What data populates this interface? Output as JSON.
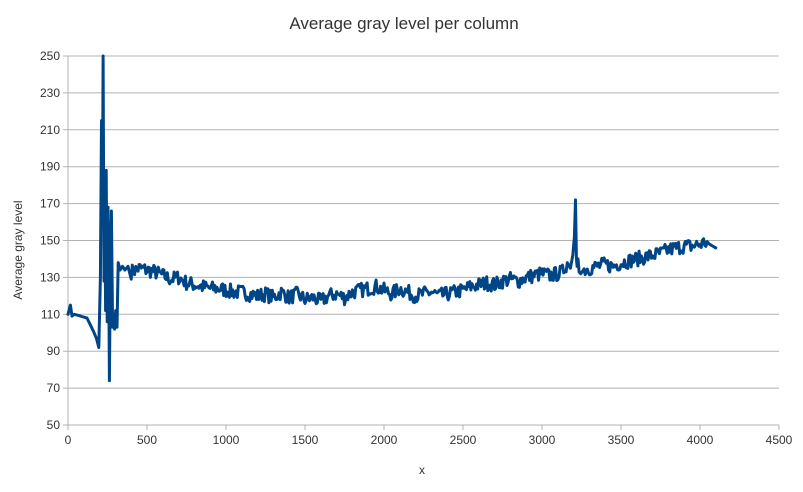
{
  "chart_data": {
    "type": "line",
    "title": "Average gray level per column",
    "xlabel": "x",
    "ylabel": "Average gray level",
    "xlim": [
      0,
      4500
    ],
    "ylim": [
      50,
      250
    ],
    "x_ticks": [
      0,
      500,
      1000,
      1500,
      2000,
      2500,
      3000,
      3500,
      4000,
      4500
    ],
    "y_ticks": [
      50,
      70,
      90,
      110,
      130,
      150,
      170,
      190,
      210,
      230,
      250
    ],
    "grid": true,
    "legend": "none",
    "series": [
      {
        "color": "#004586",
        "x": [
          0,
          15,
          25,
          40,
          80,
          120,
          160,
          180,
          195,
          205,
          212,
          218,
          222,
          228,
          232,
          238,
          242,
          248,
          253,
          258,
          262,
          268,
          275,
          282,
          288,
          295,
          302,
          310,
          318,
          330,
          345,
          360,
          380,
          400,
          450,
          500,
          550,
          600,
          650,
          700,
          750,
          800,
          850,
          900,
          950,
          1000,
          1050,
          1100,
          1150,
          1200,
          1250,
          1300,
          1350,
          1400,
          1450,
          1500,
          1550,
          1600,
          1650,
          1700,
          1750,
          1800,
          1850,
          1900,
          1950,
          2000,
          2050,
          2100,
          2150,
          2200,
          2250,
          2300,
          2350,
          2400,
          2450,
          2500,
          2550,
          2600,
          2650,
          2700,
          2750,
          2800,
          2850,
          2900,
          2950,
          3000,
          3050,
          3100,
          3130,
          3160,
          3180,
          3195,
          3205,
          3212,
          3218,
          3222,
          3228,
          3235,
          3245,
          3260,
          3300,
          3350,
          3400,
          3450,
          3500,
          3550,
          3600,
          3650,
          3700,
          3750,
          3800,
          3850,
          3900,
          3950,
          4000,
          4030,
          4060,
          4080,
          4100
        ],
        "values": [
          110,
          115,
          109,
          110,
          109,
          108,
          101,
          97,
          92,
          130,
          215,
          160,
          250,
          128,
          175,
          112,
          188,
          106,
          168,
          128,
          74,
          130,
          166,
          103,
          110,
          102,
          112,
          103,
          138,
          134,
          136,
          134,
          136,
          133,
          135,
          134,
          133,
          131,
          129,
          130,
          127,
          126,
          125,
          124,
          124,
          123,
          122,
          122,
          121,
          120,
          121,
          119,
          122,
          119,
          121,
          118,
          119,
          117,
          120,
          121,
          119,
          122,
          123,
          124,
          125,
          123,
          121,
          124,
          122,
          120,
          121,
          122,
          120,
          121,
          122,
          123,
          125,
          126,
          127,
          126,
          128,
          129,
          128,
          130,
          131,
          132,
          131,
          132,
          133,
          138,
          135,
          142,
          152,
          172,
          140,
          136,
          140,
          133,
          132,
          134,
          135,
          136,
          137,
          136,
          138,
          139,
          140,
          141,
          142,
          143,
          145,
          146,
          147,
          147,
          148,
          149,
          148,
          147,
          146
        ]
      }
    ]
  }
}
